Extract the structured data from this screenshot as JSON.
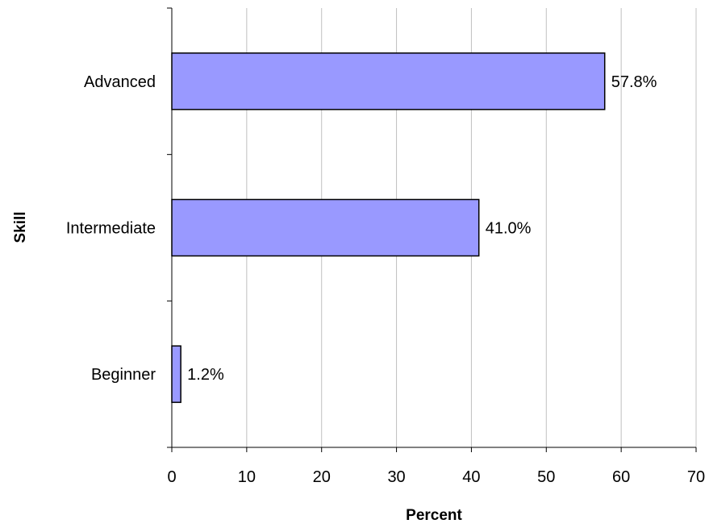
{
  "chart_data": {
    "type": "bar",
    "orientation": "horizontal",
    "categories": [
      "Advanced",
      "Intermediate",
      "Beginner"
    ],
    "values": [
      57.8,
      41.0,
      1.2
    ],
    "data_labels": [
      "57.8%",
      "41.0%",
      "1.2%"
    ],
    "xlabel": "Percent",
    "ylabel": "Skill",
    "xlim": [
      0,
      70
    ],
    "x_ticks": [
      0,
      10,
      20,
      30,
      40,
      50,
      60,
      70
    ],
    "x_tick_labels": [
      "0",
      "10",
      "20",
      "30",
      "40",
      "50",
      "60",
      "70"
    ],
    "grid": "vertical",
    "legend": "none",
    "bar_color": "#9999FF",
    "bar_edge_color": "#000000",
    "grid_color": "#C0C0C0"
  }
}
